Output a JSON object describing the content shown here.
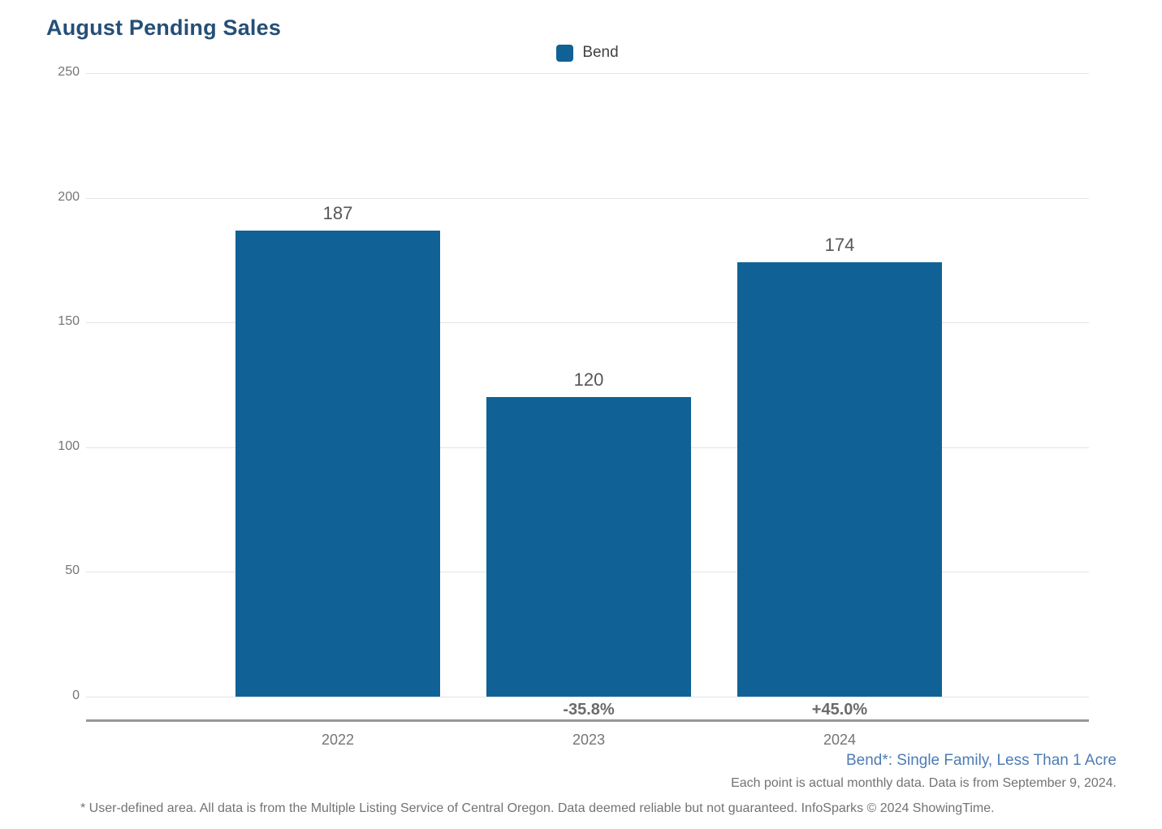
{
  "title": "August Pending Sales",
  "legend": {
    "label": "Bend"
  },
  "chart_data": {
    "type": "bar",
    "title": "August Pending Sales",
    "categories": [
      "2022",
      "2023",
      "2024"
    ],
    "series": [
      {
        "name": "Bend",
        "values": [
          187,
          120,
          174
        ],
        "color": "#106296"
      }
    ],
    "value_labels": [
      "187",
      "120",
      "174"
    ],
    "change_labels": [
      "",
      "-35.8%",
      "+45.0%"
    ],
    "y_ticks": [
      "0",
      "50",
      "100",
      "150",
      "200",
      "250"
    ],
    "ylim": [
      0,
      250
    ],
    "grid": true,
    "legend_position": "top-center",
    "xlabel": "",
    "ylabel": ""
  },
  "footer": {
    "series_note": "Bend*: Single Family, Less Than 1 Acre",
    "data_note": "Each point is actual monthly data. Data is from September 9, 2024.",
    "disclaimer": "* User-defined area. All data is from the Multiple Listing Service of Central Oregon. Data deemed reliable but not guaranteed. InfoSparks © 2024 ShowingTime."
  },
  "colors": {
    "bar": "#106296",
    "title": "#254f77",
    "legend_label": "#3f4245",
    "series_note": "#4d7cb4",
    "footer_text": "#737373",
    "axis_text": "#757575",
    "value_label": "#565656",
    "change_label": "#6b6b6b",
    "gridline": "#e3e3e3",
    "axis_line": "#97989a"
  }
}
